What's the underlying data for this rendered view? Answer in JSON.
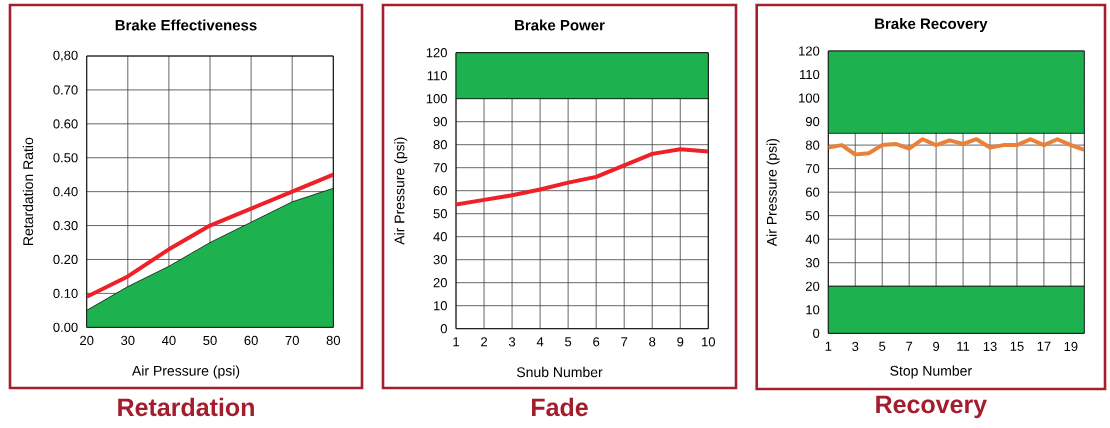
{
  "chart_data": [
    {
      "type": "line",
      "title": "Brake Effectiveness",
      "xlabel": "Air Pressure (psi)",
      "ylabel": "Retardation Ratio",
      "annotations": [
        "Retardation"
      ],
      "x": [
        20,
        30,
        40,
        50,
        60,
        70,
        80
      ],
      "series": [
        {
          "type": "area",
          "color": "#1db14f",
          "values": [
            0.05,
            0.12,
            0.18,
            0.25,
            0.31,
            0.37,
            0.41
          ]
        },
        {
          "type": "line",
          "color": "#ee2128",
          "values": [
            0.09,
            0.15,
            0.23,
            0.3,
            0.35,
            0.4,
            0.45
          ]
        }
      ],
      "xlim": [
        20,
        80
      ],
      "ylim": [
        0,
        0.8
      ],
      "xticks": [
        20,
        30,
        40,
        50,
        60,
        70,
        80
      ],
      "yticks": [
        {
          "value": 0,
          "label": "0.00"
        },
        {
          "value": 0.1,
          "label": "0.10"
        },
        {
          "value": 0.2,
          "label": "0.20"
        },
        {
          "value": 0.3,
          "label": "0.30"
        },
        {
          "value": 0.4,
          "label": "0.40"
        },
        {
          "value": 0.5,
          "label": "0.50"
        },
        {
          "value": 0.6,
          "label": "0.60"
        },
        {
          "value": 0.7,
          "label": "0.70"
        },
        {
          "value": 0.8,
          "label": "0,80"
        }
      ],
      "grid": true
    },
    {
      "type": "line",
      "title": "Brake Power",
      "xlabel": "Snub Number",
      "ylabel": "Air Pressure (psi)",
      "annotations": [
        "Fade"
      ],
      "x": [
        1,
        2,
        3,
        4,
        5,
        6,
        7,
        8,
        9,
        10
      ],
      "series": [
        {
          "type": "line",
          "color": "#ee2128",
          "values": [
            54,
            56,
            58,
            60.5,
            63.5,
            66,
            71,
            76,
            78,
            77
          ]
        }
      ],
      "xlim": [
        1,
        10
      ],
      "ylim": [
        0,
        120
      ],
      "xticks": [
        1,
        2,
        3,
        4,
        5,
        6,
        7,
        8,
        9,
        10
      ],
      "yticks": [
        0,
        10,
        20,
        30,
        40,
        50,
        60,
        70,
        80,
        90,
        100,
        110,
        120
      ],
      "grid": true,
      "bands": [
        {
          "axis": "y",
          "from": 100,
          "to": 120,
          "color": "#1db14f"
        }
      ]
    },
    {
      "type": "line",
      "title": "Brake Recovery",
      "xlabel": "Stop Number",
      "ylabel": "Air Pressure (psi)",
      "annotations": [
        "Recovery"
      ],
      "x": [
        1,
        2,
        3,
        4,
        5,
        6,
        7,
        8,
        9,
        10,
        11,
        12,
        13,
        14,
        15,
        16,
        17,
        18,
        19,
        20
      ],
      "series": [
        {
          "type": "line",
          "color": "#e8823a",
          "values": [
            79,
            80,
            76,
            76.5,
            80,
            80.5,
            78.5,
            82.5,
            80,
            82,
            80.5,
            82.5,
            79,
            80,
            80,
            82.5,
            80,
            82.5,
            80,
            78
          ]
        }
      ],
      "xlim": [
        1,
        20
      ],
      "ylim": [
        0,
        120
      ],
      "xticks": [
        1,
        3,
        5,
        7,
        9,
        11,
        13,
        15,
        17,
        19
      ],
      "yticks": [
        0,
        10,
        20,
        30,
        40,
        50,
        60,
        70,
        80,
        90,
        100,
        110,
        120
      ],
      "grid": true,
      "bands": [
        {
          "axis": "y",
          "from": 0,
          "to": 20,
          "color": "#1db14f"
        },
        {
          "axis": "y",
          "from": 85,
          "to": 120,
          "color": "#1db14f"
        }
      ]
    }
  ]
}
